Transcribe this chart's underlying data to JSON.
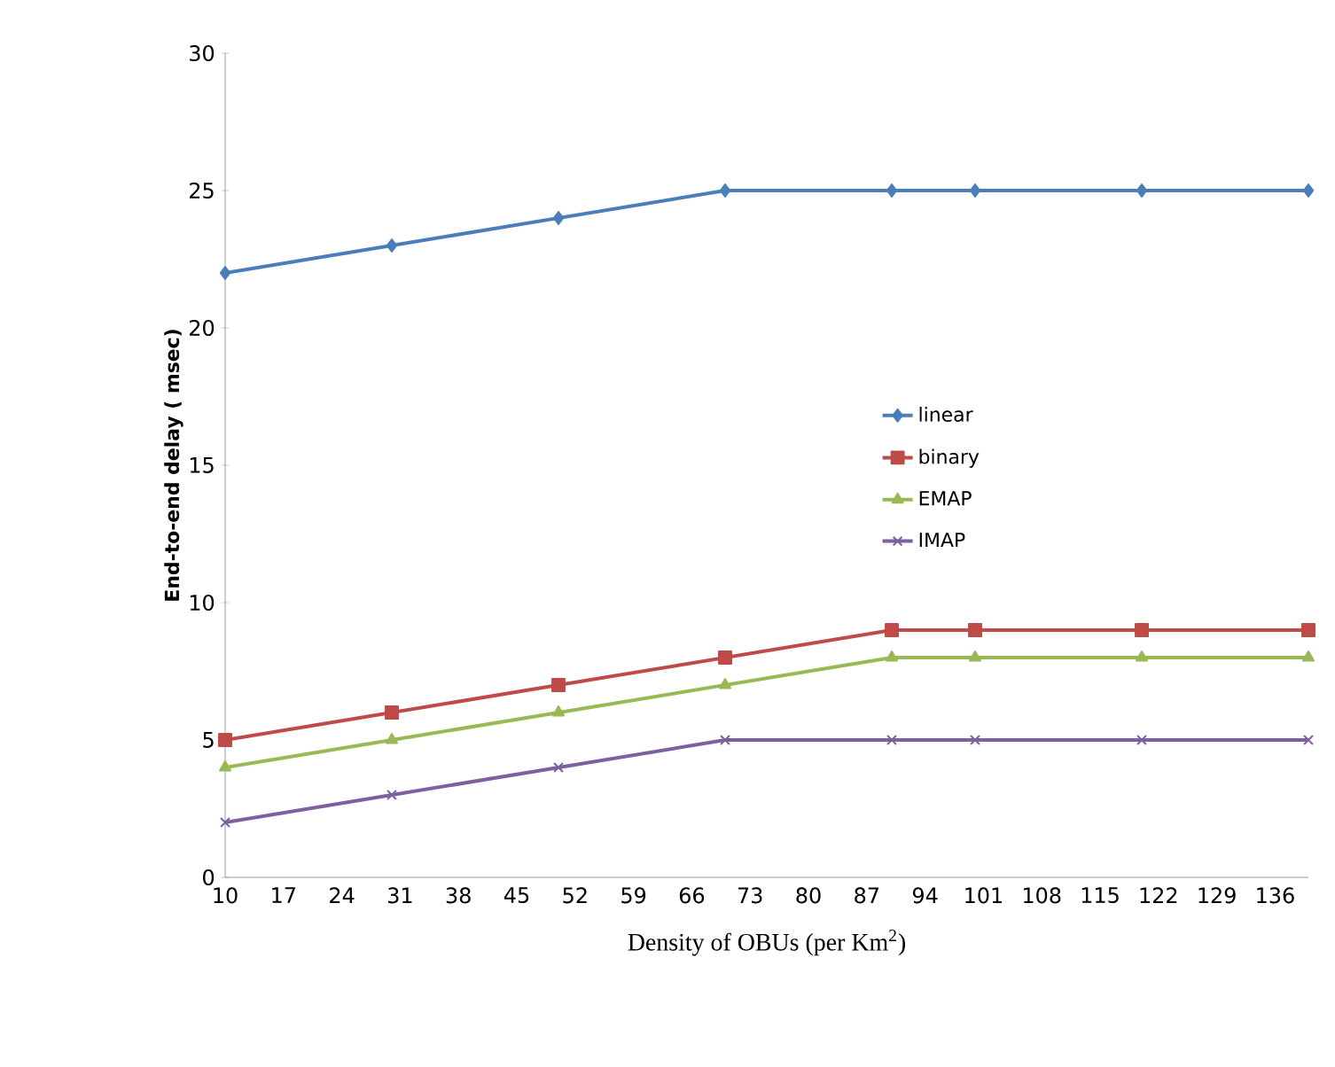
{
  "chart_data": {
    "type": "line",
    "xlabel": "Density of OBUs (per  Km$^{2}$)",
    "ylabel": "End-to-end delay  ( msec)",
    "x": [
      10,
      30,
      50,
      70,
      90,
      100,
      120,
      140
    ],
    "series": [
      {
        "name": "linear",
        "color": "#4a7ebb",
        "marker": "diamond",
        "values": [
          22,
          23,
          24,
          25,
          25,
          25,
          25,
          25
        ]
      },
      {
        "name": "binary",
        "color": "#be4b48",
        "marker": "square",
        "values": [
          5,
          6,
          7,
          8,
          9,
          9,
          9,
          9
        ]
      },
      {
        "name": "EMAP",
        "color": "#98b954",
        "marker": "triangle",
        "values": [
          4,
          5,
          6,
          7,
          8,
          8,
          8,
          8
        ]
      },
      {
        "name": "IMAP",
        "color": "#7d60a0",
        "marker": "cross",
        "values": [
          2,
          3,
          4,
          5,
          5,
          5,
          5,
          5
        ]
      }
    ],
    "xlim": [
      10,
      140
    ],
    "xticks": [
      10,
      17,
      24,
      31,
      38,
      45,
      52,
      59,
      66,
      73,
      80,
      87,
      94,
      101,
      108,
      115,
      122,
      129,
      136
    ],
    "ylim": [
      0,
      30
    ],
    "yticks": [
      0,
      5,
      10,
      15,
      20,
      25,
      30
    ],
    "grid": false,
    "legend": "right",
    "line_style": "solid"
  }
}
